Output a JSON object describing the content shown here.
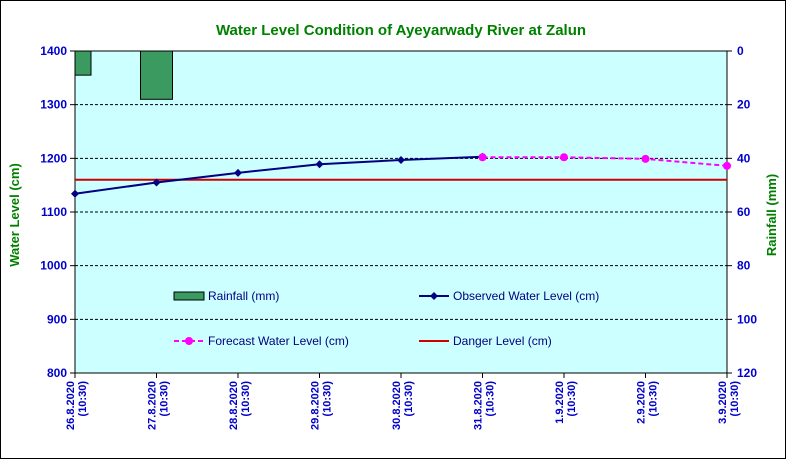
{
  "chart_data": {
    "type": "line",
    "title": "Water Level Condition of Ayeyarwady  River at Zalun",
    "ylabel": "Water Level (cm)",
    "y2label": "Rainfall (mm)",
    "categories": [
      "26.8.2020 (10:30)",
      "27.8.2020 (10:30)",
      "28.8.2020 (10:30)",
      "29.8.2020 (10:30)",
      "30.8.2020 (10:30)",
      "31.8.2020 (10:30)",
      "1.9.2020 (10:30)",
      "2.9.2020 (10:30)",
      "3.9.2020 (10:30)"
    ],
    "ylim": [
      800,
      1400
    ],
    "y2lim": [
      0,
      120
    ],
    "y2_inverted": true,
    "yticks": [
      "800",
      "900",
      "1000",
      "1100",
      "1200",
      "1300",
      "1400"
    ],
    "y2ticks": [
      "0",
      "20",
      "40",
      "60",
      "80",
      "100",
      "120"
    ],
    "grid": true,
    "series": [
      {
        "name": "Rainfall (mm)",
        "kind": "bar",
        "axis": "right",
        "color": "#3a9a60",
        "values": [
          9,
          18,
          0,
          0,
          0,
          0,
          0,
          0,
          0
        ]
      },
      {
        "name": "Observed Water Level (cm)",
        "kind": "line",
        "axis": "left",
        "color": "#000080",
        "marker": "diamond",
        "values": [
          1134,
          1155,
          1173,
          1189,
          1197,
          1203,
          null,
          null,
          null
        ]
      },
      {
        "name": "Forecast Water Level (cm)",
        "kind": "line",
        "axis": "left",
        "color": "#ff00ff",
        "marker": "circle",
        "dashed": true,
        "values": [
          null,
          null,
          null,
          null,
          null,
          1202,
          1202,
          1199,
          1186
        ]
      },
      {
        "name": "Danger Level (cm)",
        "kind": "hline",
        "axis": "left",
        "color": "#cc0000",
        "value": 1160
      }
    ],
    "legend": {
      "placement": "inside-bottom"
    },
    "colors": {
      "plot_bg": "#ccffff",
      "title": "#008000",
      "axis_label": "#008000",
      "tick": "#0000cc"
    }
  }
}
